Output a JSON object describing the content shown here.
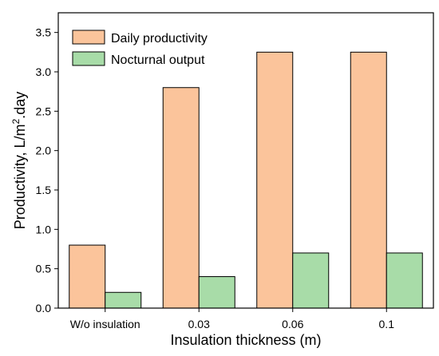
{
  "chart_data": {
    "type": "bar",
    "categories": [
      "W/o insulation",
      "0.03",
      "0.06",
      "0.1"
    ],
    "series": [
      {
        "name": "Daily productivity",
        "values": [
          0.8,
          2.8,
          3.25,
          3.25
        ],
        "color": "#FBC49B"
      },
      {
        "name": "Nocturnal output",
        "values": [
          0.2,
          0.4,
          0.7,
          0.7
        ],
        "color": "#A8DCA8"
      }
    ],
    "xlabel": "Insulation thickness (m)",
    "ylabel_main": "Productivity, L/m",
    "ylabel_sup": "2",
    "ylabel_end": ".day",
    "ylim": [
      0,
      3.75
    ],
    "yticks": [
      "0.0",
      "0.5",
      "1.0",
      "1.5",
      "2.0",
      "2.5",
      "3.0",
      "3.5"
    ],
    "ytick_values": [
      0,
      0.5,
      1.0,
      1.5,
      2.0,
      2.5,
      3.0,
      3.5
    ],
    "legend_position": "top-left",
    "grid": false
  }
}
